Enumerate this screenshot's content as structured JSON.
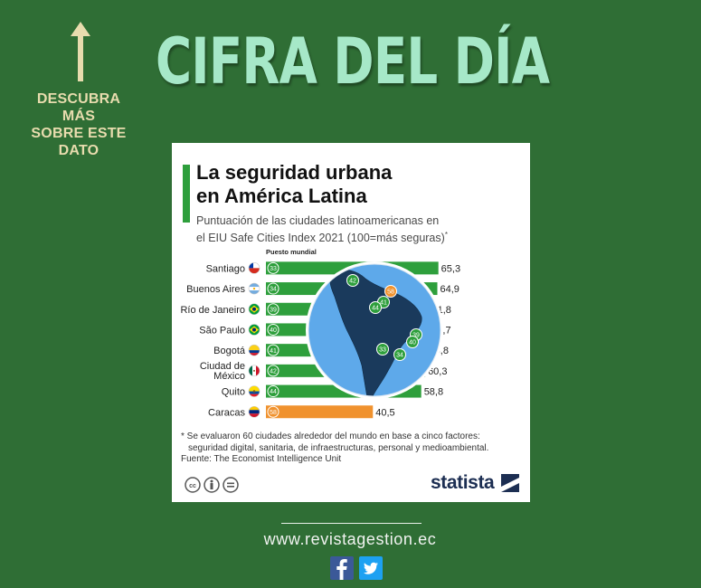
{
  "header": {
    "headline": "CIFRA DEL DÍA",
    "side_note_line1": "DESCUBRA MÁS",
    "side_note_line2": "SOBRE ESTE DATO",
    "arrow_icon": "up-arrow-icon"
  },
  "card": {
    "title_line1": "La seguridad urbana",
    "title_line2": "en América Latina",
    "subtitle_line1": "Puntuación de las ciudades latinoamericanas en",
    "subtitle_line2": "el EIU Safe Cities Index 2021 (100=más seguras)",
    "subtitle_mark": "*",
    "rank_header": "Puesto mundial",
    "footnote_line1": "* Se evaluaron 60 ciudades alrededor del mundo en base a cinco factores:",
    "footnote_line2": "seguridad digital, sanitaria, de infraestructuras, personal y medioambiental.",
    "source": "Fuente: The Economist Intelligence Unit",
    "brand": "statista",
    "license_icons": [
      "cc-icon",
      "by-icon",
      "nd-icon"
    ]
  },
  "chart_data": {
    "type": "bar",
    "orientation": "horizontal",
    "title": "La seguridad urbana en América Latina",
    "subtitle": "Puntuación de las ciudades latinoamericanas en el EIU Safe Cities Index 2021 (100=más seguras)*",
    "xlim": [
      0,
      100
    ],
    "grid": false,
    "rows": [
      {
        "city": "Santiago",
        "label_lines": [
          "Santiago"
        ],
        "flag": "chile-flag-icon",
        "rank": 33,
        "value": 65.3,
        "value_label": "65,3",
        "color": "#2e9f3c"
      },
      {
        "city": "Buenos Aires",
        "label_lines": [
          "Buenos Aires"
        ],
        "flag": "argentina-flag-icon",
        "rank": 34,
        "value": 64.9,
        "value_label": "64,9",
        "color": "#2e9f3c"
      },
      {
        "city": "Río de Janeiro",
        "label_lines": [
          "Río de Janeiro"
        ],
        "flag": "brazil-flag-icon",
        "rank": 39,
        "value": 61.8,
        "value_label": "61,8",
        "color": "#2e9f3c"
      },
      {
        "city": "São Paulo",
        "label_lines": [
          "São Paulo"
        ],
        "flag": "brazil-flag-icon",
        "rank": 40,
        "value": 61.7,
        "value_label": "61,7",
        "color": "#2e9f3c"
      },
      {
        "city": "Bogotá",
        "label_lines": [
          "Bogotá"
        ],
        "flag": "colombia-flag-icon",
        "rank": 41,
        "value": 60.8,
        "value_label": "60,8",
        "color": "#2e9f3c"
      },
      {
        "city": "Ciudad de México",
        "label_lines": [
          "Ciudad de",
          "México"
        ],
        "flag": "mexico-flag-icon",
        "rank": 42,
        "value": 60.3,
        "value_label": "60,3",
        "color": "#2e9f3c"
      },
      {
        "city": "Quito",
        "label_lines": [
          "Quito"
        ],
        "flag": "ecuador-flag-icon",
        "rank": 44,
        "value": 58.8,
        "value_label": "58,8",
        "color": "#2e9f3c"
      },
      {
        "city": "Caracas",
        "label_lines": [
          "Caracas"
        ],
        "flag": "venezuela-flag-icon",
        "rank": 58,
        "value": 40.5,
        "value_label": "40,5",
        "color": "#f0922e"
      }
    ],
    "map_markers": [
      {
        "label": "42",
        "color": "#2e9f3c"
      },
      {
        "label": "58",
        "color": "#f0922e"
      },
      {
        "label": "41",
        "color": "#2e9f3c"
      },
      {
        "label": "44",
        "color": "#2e9f3c"
      },
      {
        "label": "39",
        "color": "#2e9f3c"
      },
      {
        "label": "40",
        "color": "#2e9f3c"
      },
      {
        "label": "33",
        "color": "#2e9f3c"
      },
      {
        "label": "34",
        "color": "#2e9f3c"
      }
    ]
  },
  "footer": {
    "url": "www.revistagestion.ec",
    "social_icons": [
      "facebook-icon",
      "twitter-icon"
    ]
  },
  "colors": {
    "background": "#2f6e35",
    "headline": "#a6e8c8",
    "side_note": "#e8dcae",
    "bar_green": "#2e9f3c",
    "bar_orange": "#f0922e",
    "map_sea": "#5ea9ea"
  }
}
